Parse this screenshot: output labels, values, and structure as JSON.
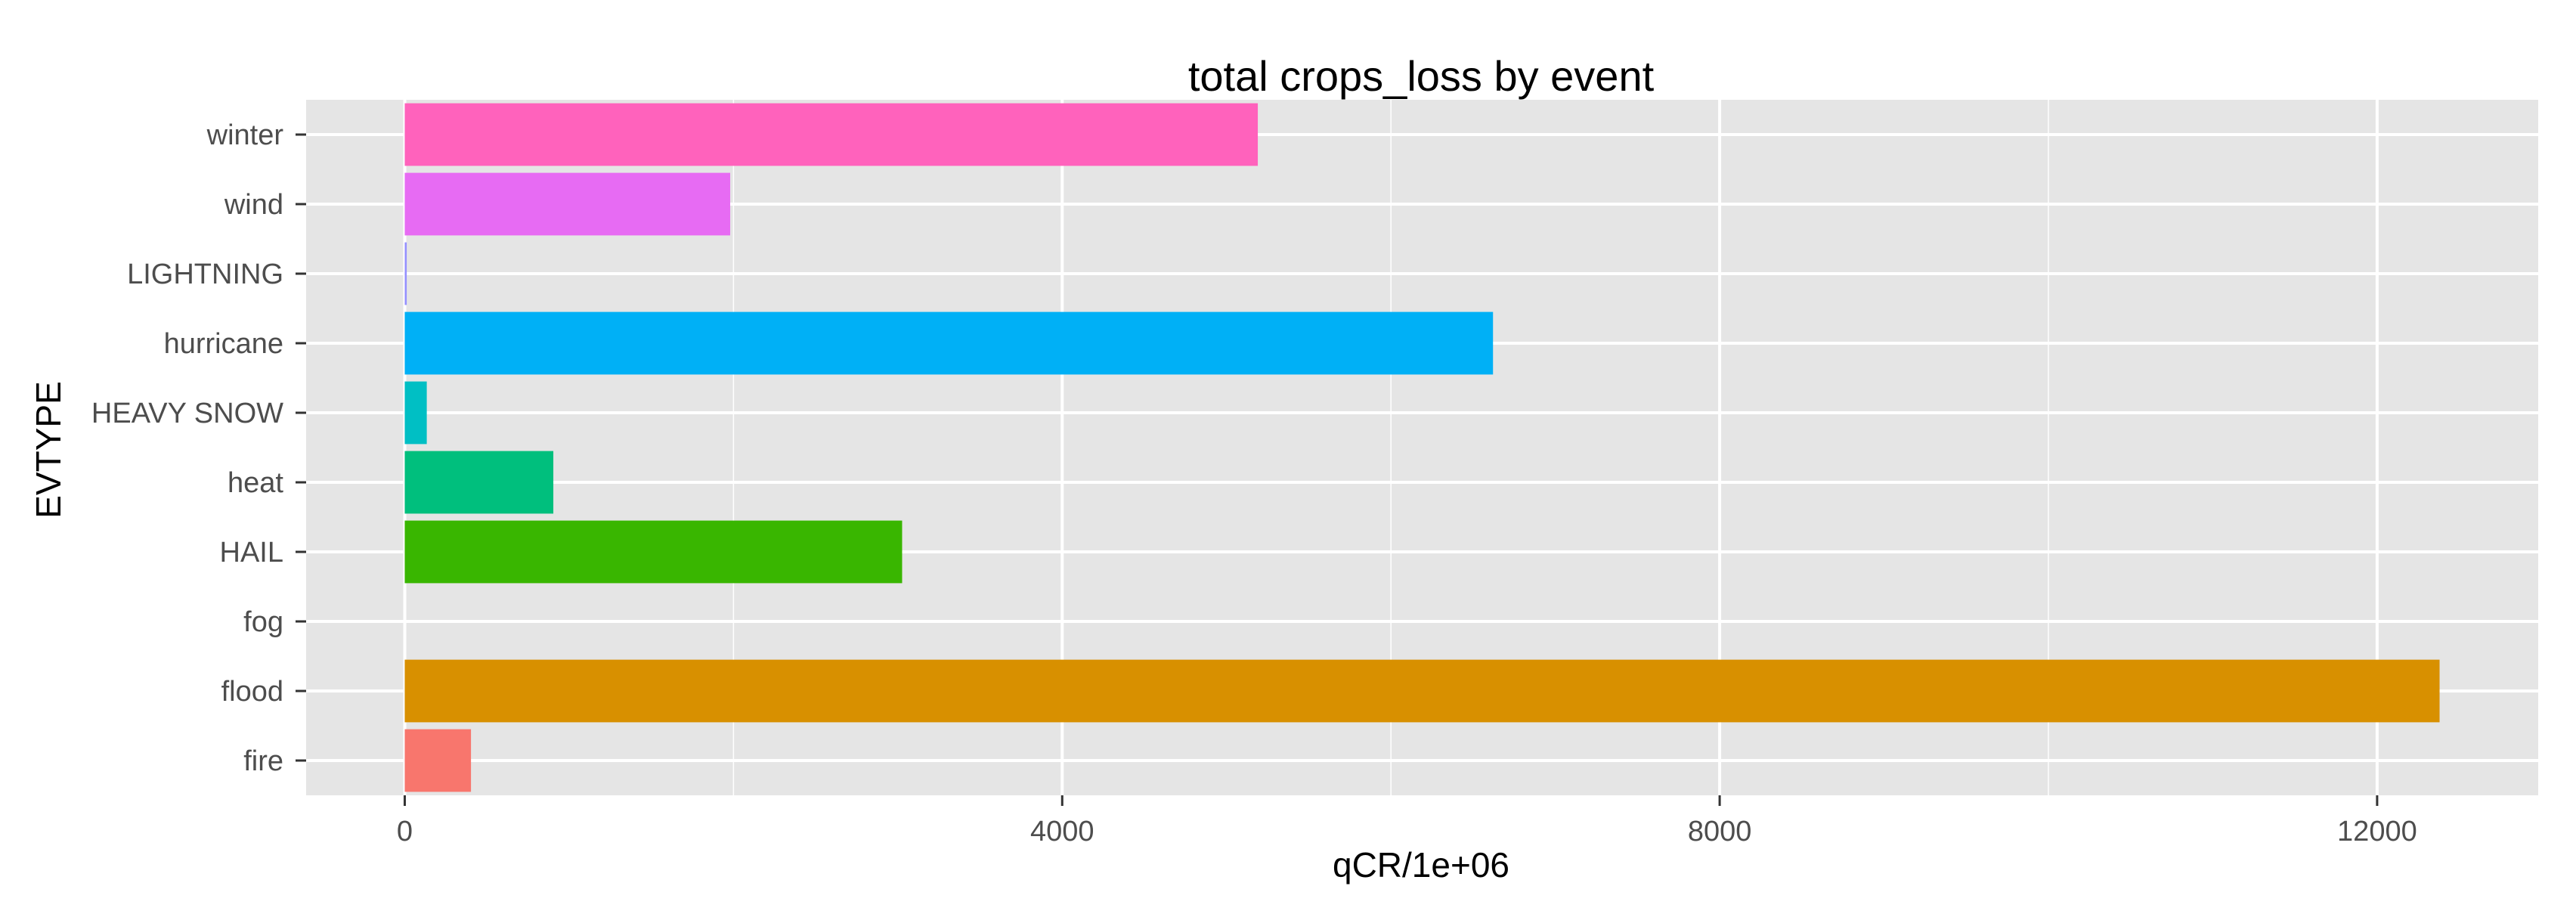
{
  "chart_data": {
    "type": "bar",
    "orientation": "horizontal",
    "title": "total crops_loss by event",
    "xlabel": "qCR/1e+06",
    "ylabel": "EVTYPE",
    "categories": [
      "fire",
      "flood",
      "fog",
      "HAIL",
      "heat",
      "HEAVY SNOW",
      "hurricane",
      "LIGHTNING",
      "wind",
      "winter"
    ],
    "values": [
      403,
      12380,
      0,
      3026,
      904,
      134,
      6621,
      12,
      1980,
      5190
    ],
    "colors": [
      "#F8766D",
      "#D89000",
      "#A3A500",
      "#39B600",
      "#00BF7D",
      "#00BFC4",
      "#00B0F6",
      "#9590FF",
      "#E76BF3",
      "#FF62BC"
    ],
    "xlim": [
      -600,
      12980
    ],
    "xticks": [
      0,
      4000,
      8000,
      12000
    ],
    "xtick_labels": [
      "0",
      "4000",
      "8000",
      "12000"
    ],
    "grid": true,
    "panel_background": "#E5E5E5",
    "grid_color": "#FFFFFF"
  }
}
